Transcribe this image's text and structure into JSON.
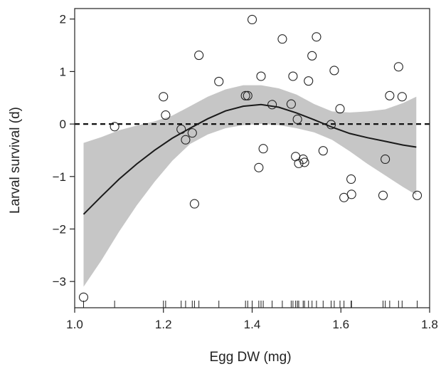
{
  "chart_data": {
    "type": "scatter",
    "xlabel": "Egg DW (mg)",
    "ylabel": "Larval survival (d)",
    "xlim": [
      1.0,
      1.8
    ],
    "ylim": [
      -3.5,
      2.2
    ],
    "x_ticks": [
      1.0,
      1.2,
      1.4,
      1.6,
      1.8
    ],
    "x_tick_labels": [
      "1.0",
      "1.2",
      "1.4",
      "1.6",
      "1.8"
    ],
    "y_ticks": [
      -3,
      -2,
      -1,
      0,
      1,
      2
    ],
    "y_tick_labels": [
      "−3",
      "−2",
      "−1",
      "0",
      "1",
      "2"
    ],
    "reference_line": {
      "y": 0,
      "style": "dashed"
    },
    "points": [
      {
        "x": 1.02,
        "y": -3.3
      },
      {
        "x": 1.09,
        "y": -0.05
      },
      {
        "x": 1.2,
        "y": 0.52
      },
      {
        "x": 1.205,
        "y": 0.17
      },
      {
        "x": 1.24,
        "y": -0.1
      },
      {
        "x": 1.25,
        "y": -0.3
      },
      {
        "x": 1.265,
        "y": -0.17
      },
      {
        "x": 1.27,
        "y": -1.52
      },
      {
        "x": 1.28,
        "y": 1.31
      },
      {
        "x": 1.325,
        "y": 0.81
      },
      {
        "x": 1.385,
        "y": 0.54
      },
      {
        "x": 1.39,
        "y": 0.54
      },
      {
        "x": 1.4,
        "y": 1.99
      },
      {
        "x": 1.415,
        "y": -0.83
      },
      {
        "x": 1.42,
        "y": 0.91
      },
      {
        "x": 1.425,
        "y": -0.47
      },
      {
        "x": 1.445,
        "y": 0.37
      },
      {
        "x": 1.468,
        "y": 1.62
      },
      {
        "x": 1.488,
        "y": 0.38
      },
      {
        "x": 1.492,
        "y": 0.91
      },
      {
        "x": 1.498,
        "y": -0.62
      },
      {
        "x": 1.502,
        "y": 0.09
      },
      {
        "x": 1.505,
        "y": -0.75
      },
      {
        "x": 1.515,
        "y": -0.67
      },
      {
        "x": 1.518,
        "y": -0.73
      },
      {
        "x": 1.527,
        "y": 0.82
      },
      {
        "x": 1.535,
        "y": 1.3
      },
      {
        "x": 1.545,
        "y": 1.66
      },
      {
        "x": 1.56,
        "y": -0.51
      },
      {
        "x": 1.578,
        "y": -0.01
      },
      {
        "x": 1.585,
        "y": 1.02
      },
      {
        "x": 1.598,
        "y": 0.29
      },
      {
        "x": 1.607,
        "y": -1.4
      },
      {
        "x": 1.623,
        "y": -1.05
      },
      {
        "x": 1.624,
        "y": -1.34
      },
      {
        "x": 1.695,
        "y": -1.36
      },
      {
        "x": 1.7,
        "y": -0.67
      },
      {
        "x": 1.71,
        "y": 0.54
      },
      {
        "x": 1.73,
        "y": 1.09
      },
      {
        "x": 1.738,
        "y": 0.52
      },
      {
        "x": 1.772,
        "y": -1.36
      }
    ],
    "fit": {
      "x": [
        1.02,
        1.06,
        1.1,
        1.14,
        1.18,
        1.22,
        1.26,
        1.3,
        1.34,
        1.38,
        1.42,
        1.46,
        1.5,
        1.54,
        1.58,
        1.62,
        1.66,
        1.7,
        1.74,
        1.77
      ],
      "y": [
        -1.72,
        -1.38,
        -1.05,
        -0.76,
        -0.5,
        -0.27,
        -0.08,
        0.1,
        0.25,
        0.34,
        0.37,
        0.32,
        0.21,
        0.08,
        -0.06,
        -0.18,
        -0.26,
        -0.33,
        -0.4,
        -0.44
      ],
      "lower": [
        -3.1,
        -2.6,
        -2.05,
        -1.55,
        -1.1,
        -0.7,
        -0.38,
        -0.2,
        -0.08,
        -0.02,
        0.0,
        -0.02,
        -0.08,
        -0.16,
        -0.3,
        -0.52,
        -0.76,
        -0.98,
        -1.2,
        -1.35
      ],
      "upper": [
        -0.36,
        -0.25,
        -0.12,
        -0.03,
        0.05,
        0.16,
        0.34,
        0.52,
        0.66,
        0.74,
        0.74,
        0.68,
        0.56,
        0.38,
        0.24,
        0.22,
        0.24,
        0.28,
        0.4,
        0.52
      ]
    },
    "rug": [
      1.02,
      1.09,
      1.2,
      1.205,
      1.24,
      1.25,
      1.265,
      1.27,
      1.28,
      1.325,
      1.385,
      1.39,
      1.4,
      1.415,
      1.42,
      1.425,
      1.445,
      1.468,
      1.488,
      1.492,
      1.498,
      1.502,
      1.505,
      1.515,
      1.518,
      1.527,
      1.535,
      1.545,
      1.56,
      1.578,
      1.585,
      1.598,
      1.607,
      1.623,
      1.624,
      1.695,
      1.7,
      1.71,
      1.73,
      1.738,
      1.772
    ],
    "colors": {
      "band": "#c6c6c6",
      "line": "#1a1a1a",
      "points": "#222222",
      "axis": "#222222"
    }
  }
}
